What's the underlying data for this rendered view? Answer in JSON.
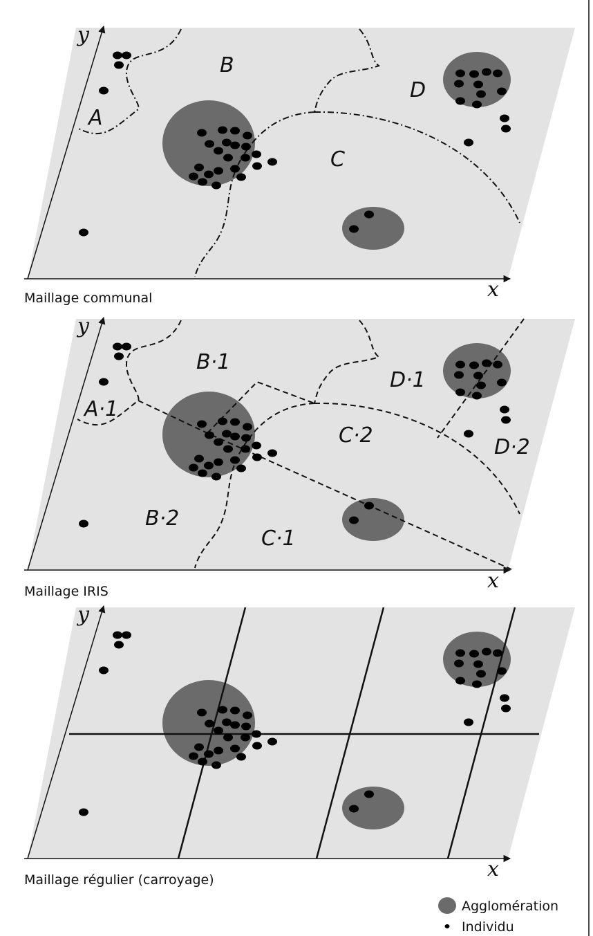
{
  "colors": {
    "plane": "#e3e3e3",
    "agglomeration": "#6b6b6b",
    "individu": "#000000",
    "line": "#111111"
  },
  "panels": [
    {
      "caption": "Maillage communal",
      "boundary_style": "dash-dot",
      "axis_x": "x",
      "axis_y": "y",
      "regions": [
        "A",
        "B",
        "C",
        "D"
      ]
    },
    {
      "caption": "Maillage IRIS",
      "boundary_style": "dashed",
      "axis_x": "x",
      "axis_y": "y",
      "regions": [
        "A·1",
        "B·1",
        "B·2",
        "C·1",
        "C·2",
        "D·1",
        "D·2"
      ]
    },
    {
      "caption": "Maillage régulier (carroyage)",
      "boundary_style": "solid-grid",
      "axis_x": "x",
      "axis_y": "y",
      "regions": []
    }
  ],
  "legend": {
    "agglomeration": "Agglomération",
    "individu": "Individu"
  }
}
